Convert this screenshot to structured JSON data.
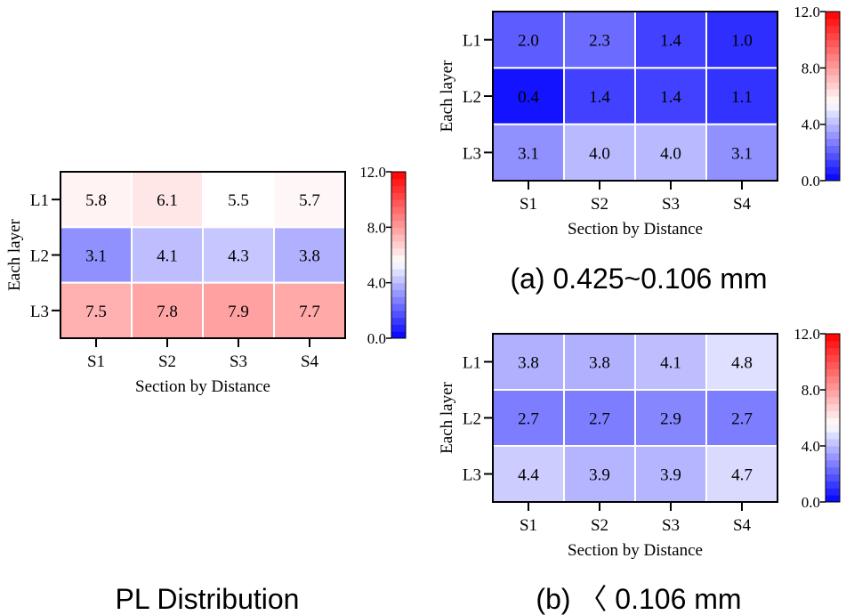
{
  "colors": {
    "low": "#0000ff",
    "mid": "#ffffff",
    "high": "#ff0000",
    "border": "#000000",
    "gridline": "#ffffff"
  },
  "chart_data": [
    {
      "type": "heatmap",
      "caption": "PL Distribution",
      "xlabel": "Section by Distance",
      "ylabel": "Each layer",
      "x_categories": [
        "S1",
        "S2",
        "S3",
        "S4"
      ],
      "y_categories": [
        "L1",
        "L2",
        "L3"
      ],
      "values": [
        [
          5.8,
          6.1,
          5.5,
          5.7
        ],
        [
          3.1,
          4.1,
          4.3,
          3.8
        ],
        [
          7.5,
          7.8,
          7.9,
          7.7
        ]
      ],
      "value_labels": [
        [
          "5.8",
          "6.1",
          "5.5",
          "5.7"
        ],
        [
          "3.1",
          "4.1",
          "4.3",
          "3.8"
        ],
        [
          "7.5",
          "7.8",
          "7.9",
          "7.7"
        ]
      ],
      "colorbar": {
        "min": 0,
        "max": 12,
        "center": 5.5,
        "ticks": [
          0,
          4,
          8,
          12
        ],
        "tick_labels": [
          "0.0",
          "4.0",
          "8.0",
          "12.0"
        ]
      }
    },
    {
      "type": "heatmap",
      "caption": "(a) 0.425~0.106 mm",
      "xlabel": "Section by Distance",
      "ylabel": "Each layer",
      "x_categories": [
        "S1",
        "S2",
        "S3",
        "S4"
      ],
      "y_categories": [
        "L1",
        "L2",
        "L3"
      ],
      "values": [
        [
          2.0,
          2.3,
          1.4,
          1.0
        ],
        [
          0.4,
          1.4,
          1.4,
          1.1
        ],
        [
          3.1,
          4.0,
          4.0,
          3.1
        ]
      ],
      "value_labels": [
        [
          "2.0",
          "2.3",
          "1.4",
          "1.0"
        ],
        [
          "0.4",
          "1.4",
          "1.4",
          "1.1"
        ],
        [
          "3.1",
          "4.0",
          "4.0",
          "3.1"
        ]
      ],
      "colorbar": {
        "min": 0,
        "max": 12,
        "center": 5.5,
        "ticks": [
          0,
          4,
          8,
          12
        ],
        "tick_labels": [
          "0.0",
          "4.0",
          "8.0",
          "12.0"
        ]
      }
    },
    {
      "type": "heatmap",
      "caption": "(b) 〈 0.106 mm",
      "xlabel": "Section by Distance",
      "ylabel": "Each layer",
      "x_categories": [
        "S1",
        "S2",
        "S3",
        "S4"
      ],
      "y_categories": [
        "L1",
        "L2",
        "L3"
      ],
      "values": [
        [
          3.8,
          3.8,
          4.1,
          4.8
        ],
        [
          2.7,
          2.7,
          2.9,
          2.7
        ],
        [
          4.4,
          3.9,
          3.9,
          4.7
        ]
      ],
      "value_labels": [
        [
          "3.8",
          "3.8",
          "4.1",
          "4.8"
        ],
        [
          "2.7",
          "2.7",
          "2.9",
          "2.7"
        ],
        [
          "4.4",
          "3.9",
          "3.9",
          "4.7"
        ]
      ],
      "colorbar": {
        "min": 0,
        "max": 12,
        "center": 5.5,
        "ticks": [
          0,
          4,
          8,
          12
        ],
        "tick_labels": [
          "0.0",
          "4.0",
          "8.0",
          "12.0"
        ]
      }
    }
  ]
}
